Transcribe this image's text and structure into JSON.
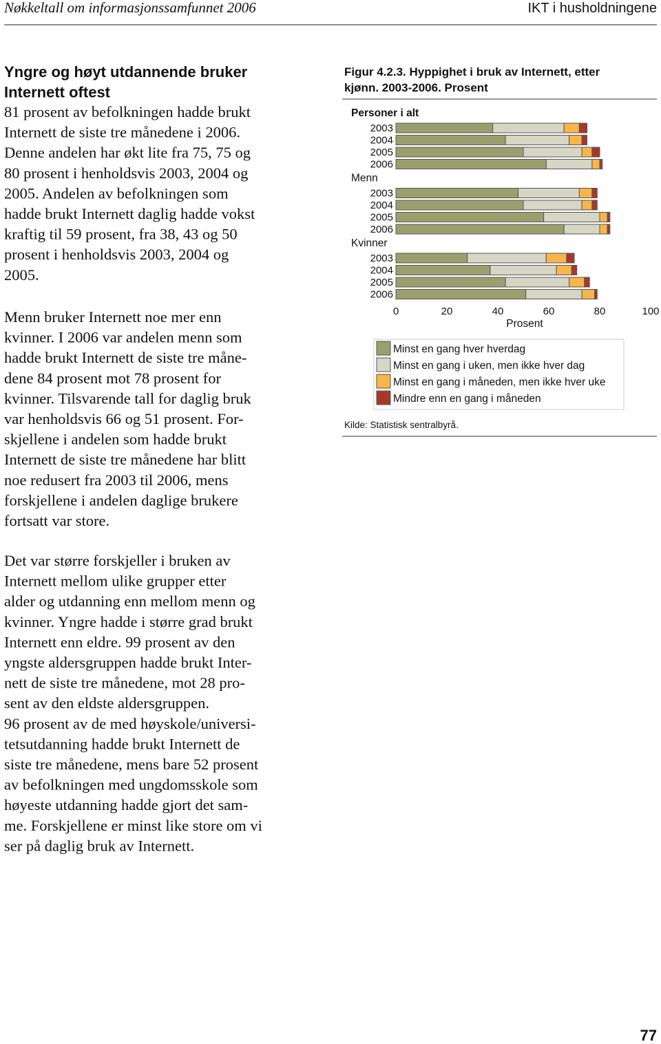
{
  "header": {
    "left": "Nøkkeltall om informasjonssamfunnet 2006",
    "right": "IKT i husholdningene"
  },
  "left": {
    "heading": [
      "Yngre og høyt utdannende bruker",
      "Internett oftest"
    ],
    "paragraphs": [
      [
        "81 prosent av befolkningen hadde brukt",
        "Internett de siste tre månedene i 2006.",
        "Denne andelen har økt lite fra 75, 75 og",
        "80 prosent i henholdsvis 2003, 2004 og",
        "2005. Andelen av befolkningen som",
        "hadde brukt Internett daglig hadde vokst",
        "kraftig til 59 prosent, fra 38, 43 og 50",
        "prosent i henholdsvis 2003, 2004 og",
        "2005."
      ],
      [
        "Menn bruker Internett noe mer enn",
        "kvinner. I 2006 var andelen menn som",
        "hadde brukt Internett de siste tre måne-",
        "dene 84 prosent mot 78 prosent for",
        "kvinner. Tilsvarende tall for daglig bruk",
        "var henholdsvis 66 og 51 prosent. For-",
        "skjellene i andelen som hadde brukt",
        "Internett de siste tre månedene har blitt",
        "noe redusert fra 2003 til 2006, mens",
        "forskjellene i andelen daglige brukere",
        "fortsatt var store."
      ],
      [
        "Det var større forskjeller i bruken av",
        "Internett mellom ulike grupper etter",
        "alder og utdanning enn mellom menn og",
        "kvinner. Yngre hadde i større grad brukt",
        "Internett enn eldre. 99 prosent av den",
        "yngste aldersgruppen hadde brukt Inter-",
        "nett de siste tre månedene, mot 28 pro-",
        "sent av den eldste aldersgruppen.",
        "96 prosent av de med høyskole/universi-",
        "tetsutdanning hadde brukt Internett de",
        "siste tre månedene, mens bare 52 prosent",
        "av befolkningen med ungdomsskole som",
        "høyeste utdanning hadde gjort det sam-",
        "me. Forskjellene er minst like store om vi",
        "ser på daglig bruk av Internett."
      ]
    ]
  },
  "chart_data": {
    "type": "bar",
    "orientation": "horizontal",
    "stacked": true,
    "title": [
      "Figur 4.2.3. Hyppighet i bruk av Internett, etter",
      "kjønn. 2003-2006. Prosent"
    ],
    "groups": [
      {
        "name": "Personer i alt",
        "categories": [
          "2003",
          "2004",
          "2005",
          "2006"
        ]
      },
      {
        "name": "Menn",
        "categories": [
          "2003",
          "2004",
          "2005",
          "2006"
        ]
      },
      {
        "name": "Kvinner",
        "categories": [
          "2003",
          "2004",
          "2005",
          "2006"
        ]
      }
    ],
    "series": [
      {
        "name": "Minst en gang hver hverdag",
        "color": "#9a9f6e",
        "values": [
          38,
          43,
          50,
          59,
          48,
          50,
          58,
          66,
          28,
          37,
          43,
          51
        ]
      },
      {
        "name": "Minst en gang i uken, men ikke hver dag",
        "color": "#d5d6c3",
        "values": [
          28,
          25,
          23,
          18,
          24,
          23,
          22,
          14,
          31,
          26,
          25,
          22
        ]
      },
      {
        "name": "Minst en gang i måneden, men ikke hver uke",
        "color": "#f7b54a",
        "values": [
          6,
          5,
          4,
          3,
          5,
          4,
          3,
          3,
          8,
          6,
          6,
          5
        ]
      },
      {
        "name": "Mindre enn en gang i måneden",
        "color": "#a8372a",
        "values": [
          3,
          2,
          3,
          1,
          2,
          2,
          1,
          1,
          3,
          2,
          2,
          1
        ]
      }
    ],
    "xlim": [
      0,
      100
    ],
    "xticks": [
      0,
      20,
      40,
      60,
      80,
      100
    ],
    "xlabel": "Prosent",
    "source": "Kilde: Statistisk sentralbyrå."
  },
  "page_number": "77"
}
